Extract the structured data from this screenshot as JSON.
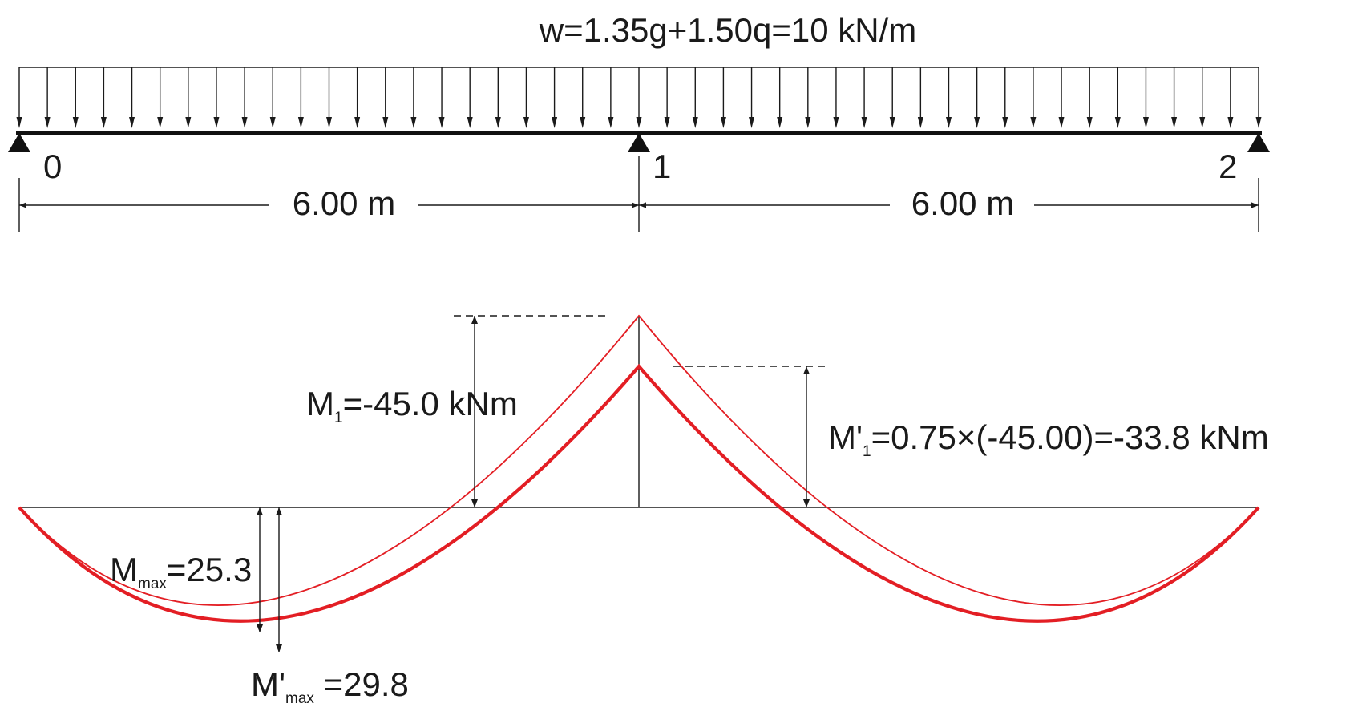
{
  "load": {
    "label": "w=1.35g+1.50q=10 kN/m"
  },
  "supports": [
    {
      "label": "0"
    },
    {
      "label": "1"
    },
    {
      "label": "2"
    }
  ],
  "spans": [
    {
      "label": "6.00 m"
    },
    {
      "label": "6.00 m"
    }
  ],
  "moments": {
    "m1": {
      "main": "M",
      "sub": "1",
      "rest": "=-45.0 kNm"
    },
    "m1_prime": {
      "main": "M'",
      "sub": "1",
      "rest": "=0.75×(-45.00)=-33.8 kNm"
    },
    "mmax": {
      "main": "M",
      "sub": "max",
      "rest": "=25.3"
    },
    "mmax_prime": {
      "main": "M'",
      "sub": "max",
      "rest": " =29.8"
    }
  },
  "colors": {
    "beam": "#111111",
    "moment_curve": "#e31e24"
  }
}
